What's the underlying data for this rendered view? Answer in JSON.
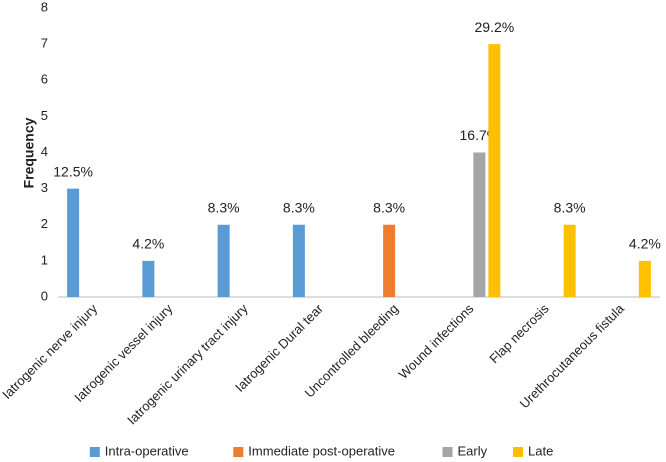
{
  "chart_data": {
    "type": "bar",
    "y_label": "Frequency",
    "categories": [
      "Iatrogenic nerve injury",
      "Iatrogenic vessel injury",
      "Iatrogenic urinary tract injury",
      "Iatrogenic Dural tear",
      "Uncontrolled bleeding",
      "Wound infections",
      "Flap necrosis",
      "Urethrocutaneous fistula"
    ],
    "series": [
      {
        "name": "Intra-operative",
        "color": "#5b9bd5",
        "values": [
          3,
          1,
          2,
          2,
          null,
          null,
          null,
          null
        ],
        "data_labels": [
          "12.5%",
          "4.2%",
          "8.3%",
          "8.3%",
          null,
          null,
          null,
          null
        ]
      },
      {
        "name": "Immediate post-operative",
        "color": "#ed7d31",
        "values": [
          null,
          null,
          null,
          null,
          2,
          null,
          null,
          null
        ],
        "data_labels": [
          null,
          null,
          null,
          null,
          "8.3%",
          null,
          null,
          null
        ]
      },
      {
        "name": "Early",
        "color": "#a5a5a5",
        "values": [
          null,
          null,
          null,
          null,
          null,
          4,
          null,
          null
        ],
        "data_labels": [
          null,
          null,
          null,
          null,
          null,
          "16.7%",
          null,
          null
        ]
      },
      {
        "name": "Late",
        "color": "#ffc000",
        "values": [
          null,
          null,
          null,
          null,
          null,
          7,
          2,
          1
        ],
        "data_labels": [
          null,
          null,
          null,
          null,
          null,
          "29.2%",
          "8.3%",
          "4.2%"
        ]
      }
    ],
    "ylim": [
      0,
      8
    ],
    "yticks": [
      0,
      1,
      2,
      3,
      4,
      5,
      6,
      7,
      8
    ],
    "grid": false,
    "legend": "bottom"
  }
}
